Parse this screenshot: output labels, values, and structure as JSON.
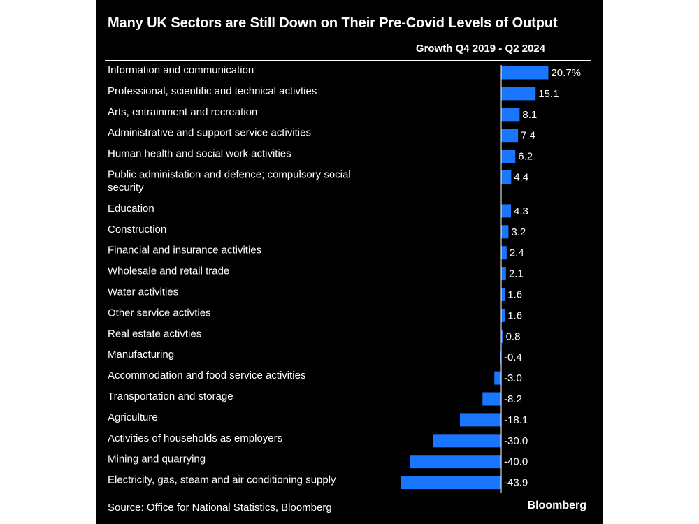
{
  "title": "Many UK Sectors are Still Down on Their Pre-Covid Levels of Output",
  "column_header": "Growth Q4 2019 - Q2 2024",
  "source": "Source: Office for National Statistics, Bloomberg",
  "brand": "Bloomberg",
  "colors": {
    "background": "#000000",
    "bar": "#1a75ff",
    "text": "#ffffff"
  },
  "chart_data": {
    "type": "bar",
    "orientation": "horizontal",
    "title": "Many UK Sectors are Still Down on Their Pre-Covid Levels of Output",
    "subtitle": "Growth Q4 2019 - Q2 2024",
    "unit": "%",
    "categories": [
      [
        "Information and communication"
      ],
      [
        "Professional, scientific and technical activties"
      ],
      [
        "Arts, entrainment and recreation"
      ],
      [
        "Administrative and support service activities"
      ],
      [
        "Human health and social work activities"
      ],
      [
        "Public administation and defence; compulsory social",
        "security"
      ],
      [
        "Education"
      ],
      [
        "Construction"
      ],
      [
        "Financial and insurance activities"
      ],
      [
        "Wholesale and retail trade"
      ],
      [
        "Water activities"
      ],
      [
        "Other service activties"
      ],
      [
        "Real estate activties"
      ],
      [
        "Manufacturing"
      ],
      [
        "Accommodation and food service activities"
      ],
      [
        "Transportation and storage"
      ],
      [
        "Agriculture"
      ],
      [
        "Activities of households as employers"
      ],
      [
        "Mining and quarrying"
      ],
      [
        "Electricity, gas, steam and air conditioning supply"
      ]
    ],
    "values": [
      20.7,
      15.1,
      8.1,
      7.4,
      6.2,
      4.4,
      4.3,
      3.2,
      2.4,
      2.1,
      1.6,
      1.6,
      0.8,
      -0.4,
      -3.0,
      -8.2,
      -18.1,
      -30.0,
      -40.0,
      -43.9
    ],
    "value_labels": [
      "20.7%",
      "15.1",
      "8.1",
      "7.4",
      "6.2",
      "4.4",
      "4.3",
      "3.2",
      "2.4",
      "2.1",
      "1.6",
      "1.6",
      "0.8",
      "-0.4",
      "-3.0",
      "-8.2",
      "-18.1",
      "-30.0",
      "-40.0",
      "-43.9"
    ]
  }
}
